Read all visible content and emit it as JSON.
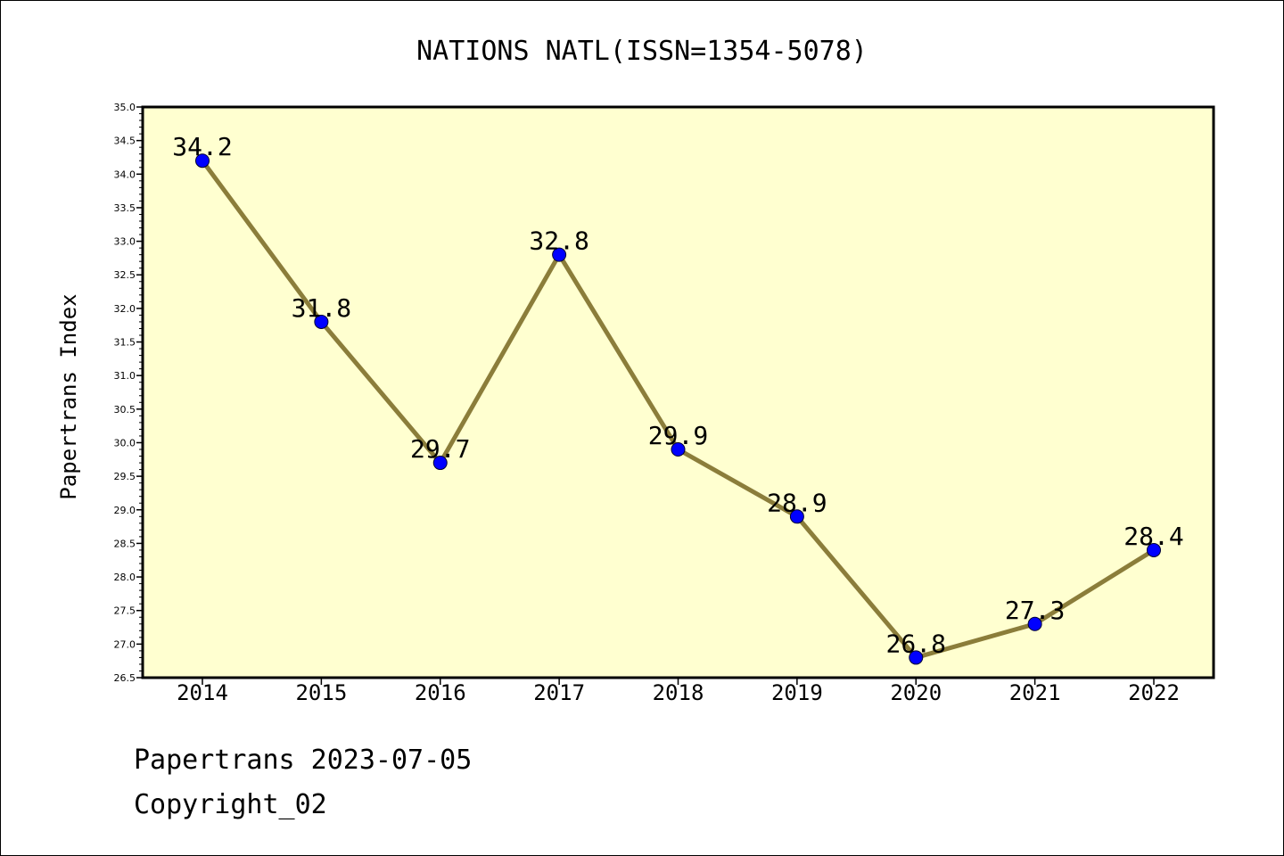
{
  "chart_data": {
    "type": "line",
    "title": "NATIONS NATL(ISSN=1354-5078)",
    "xlabel": "",
    "ylabel": "Papertrans Index",
    "categories": [
      "2014",
      "2015",
      "2016",
      "2017",
      "2018",
      "2019",
      "2020",
      "2021",
      "2022"
    ],
    "values": [
      34.2,
      31.8,
      29.7,
      32.8,
      29.9,
      28.9,
      26.8,
      27.3,
      28.4
    ],
    "data_labels": [
      "34.2",
      "31.8",
      "29.7",
      "32.8",
      "29.9",
      "28.9",
      "26.8",
      "27.3",
      "28.4"
    ],
    "ylim": [
      26.5,
      35.0
    ],
    "yticks": [
      "26.5",
      "27.0",
      "27.5",
      "28.0",
      "28.5",
      "29.0",
      "29.5",
      "30.0",
      "30.5",
      "31.0",
      "31.5",
      "32.0",
      "32.5",
      "33.0",
      "33.5",
      "34.0",
      "34.5",
      "35.0"
    ],
    "grid": false,
    "legend": "none",
    "colors": {
      "plot_background": "#FFFFD0",
      "line": "#8B7D3A",
      "marker": "#0000FF"
    }
  },
  "footer": {
    "line1": "Papertrans 2023-07-05",
    "line2": "Copyright_02"
  }
}
